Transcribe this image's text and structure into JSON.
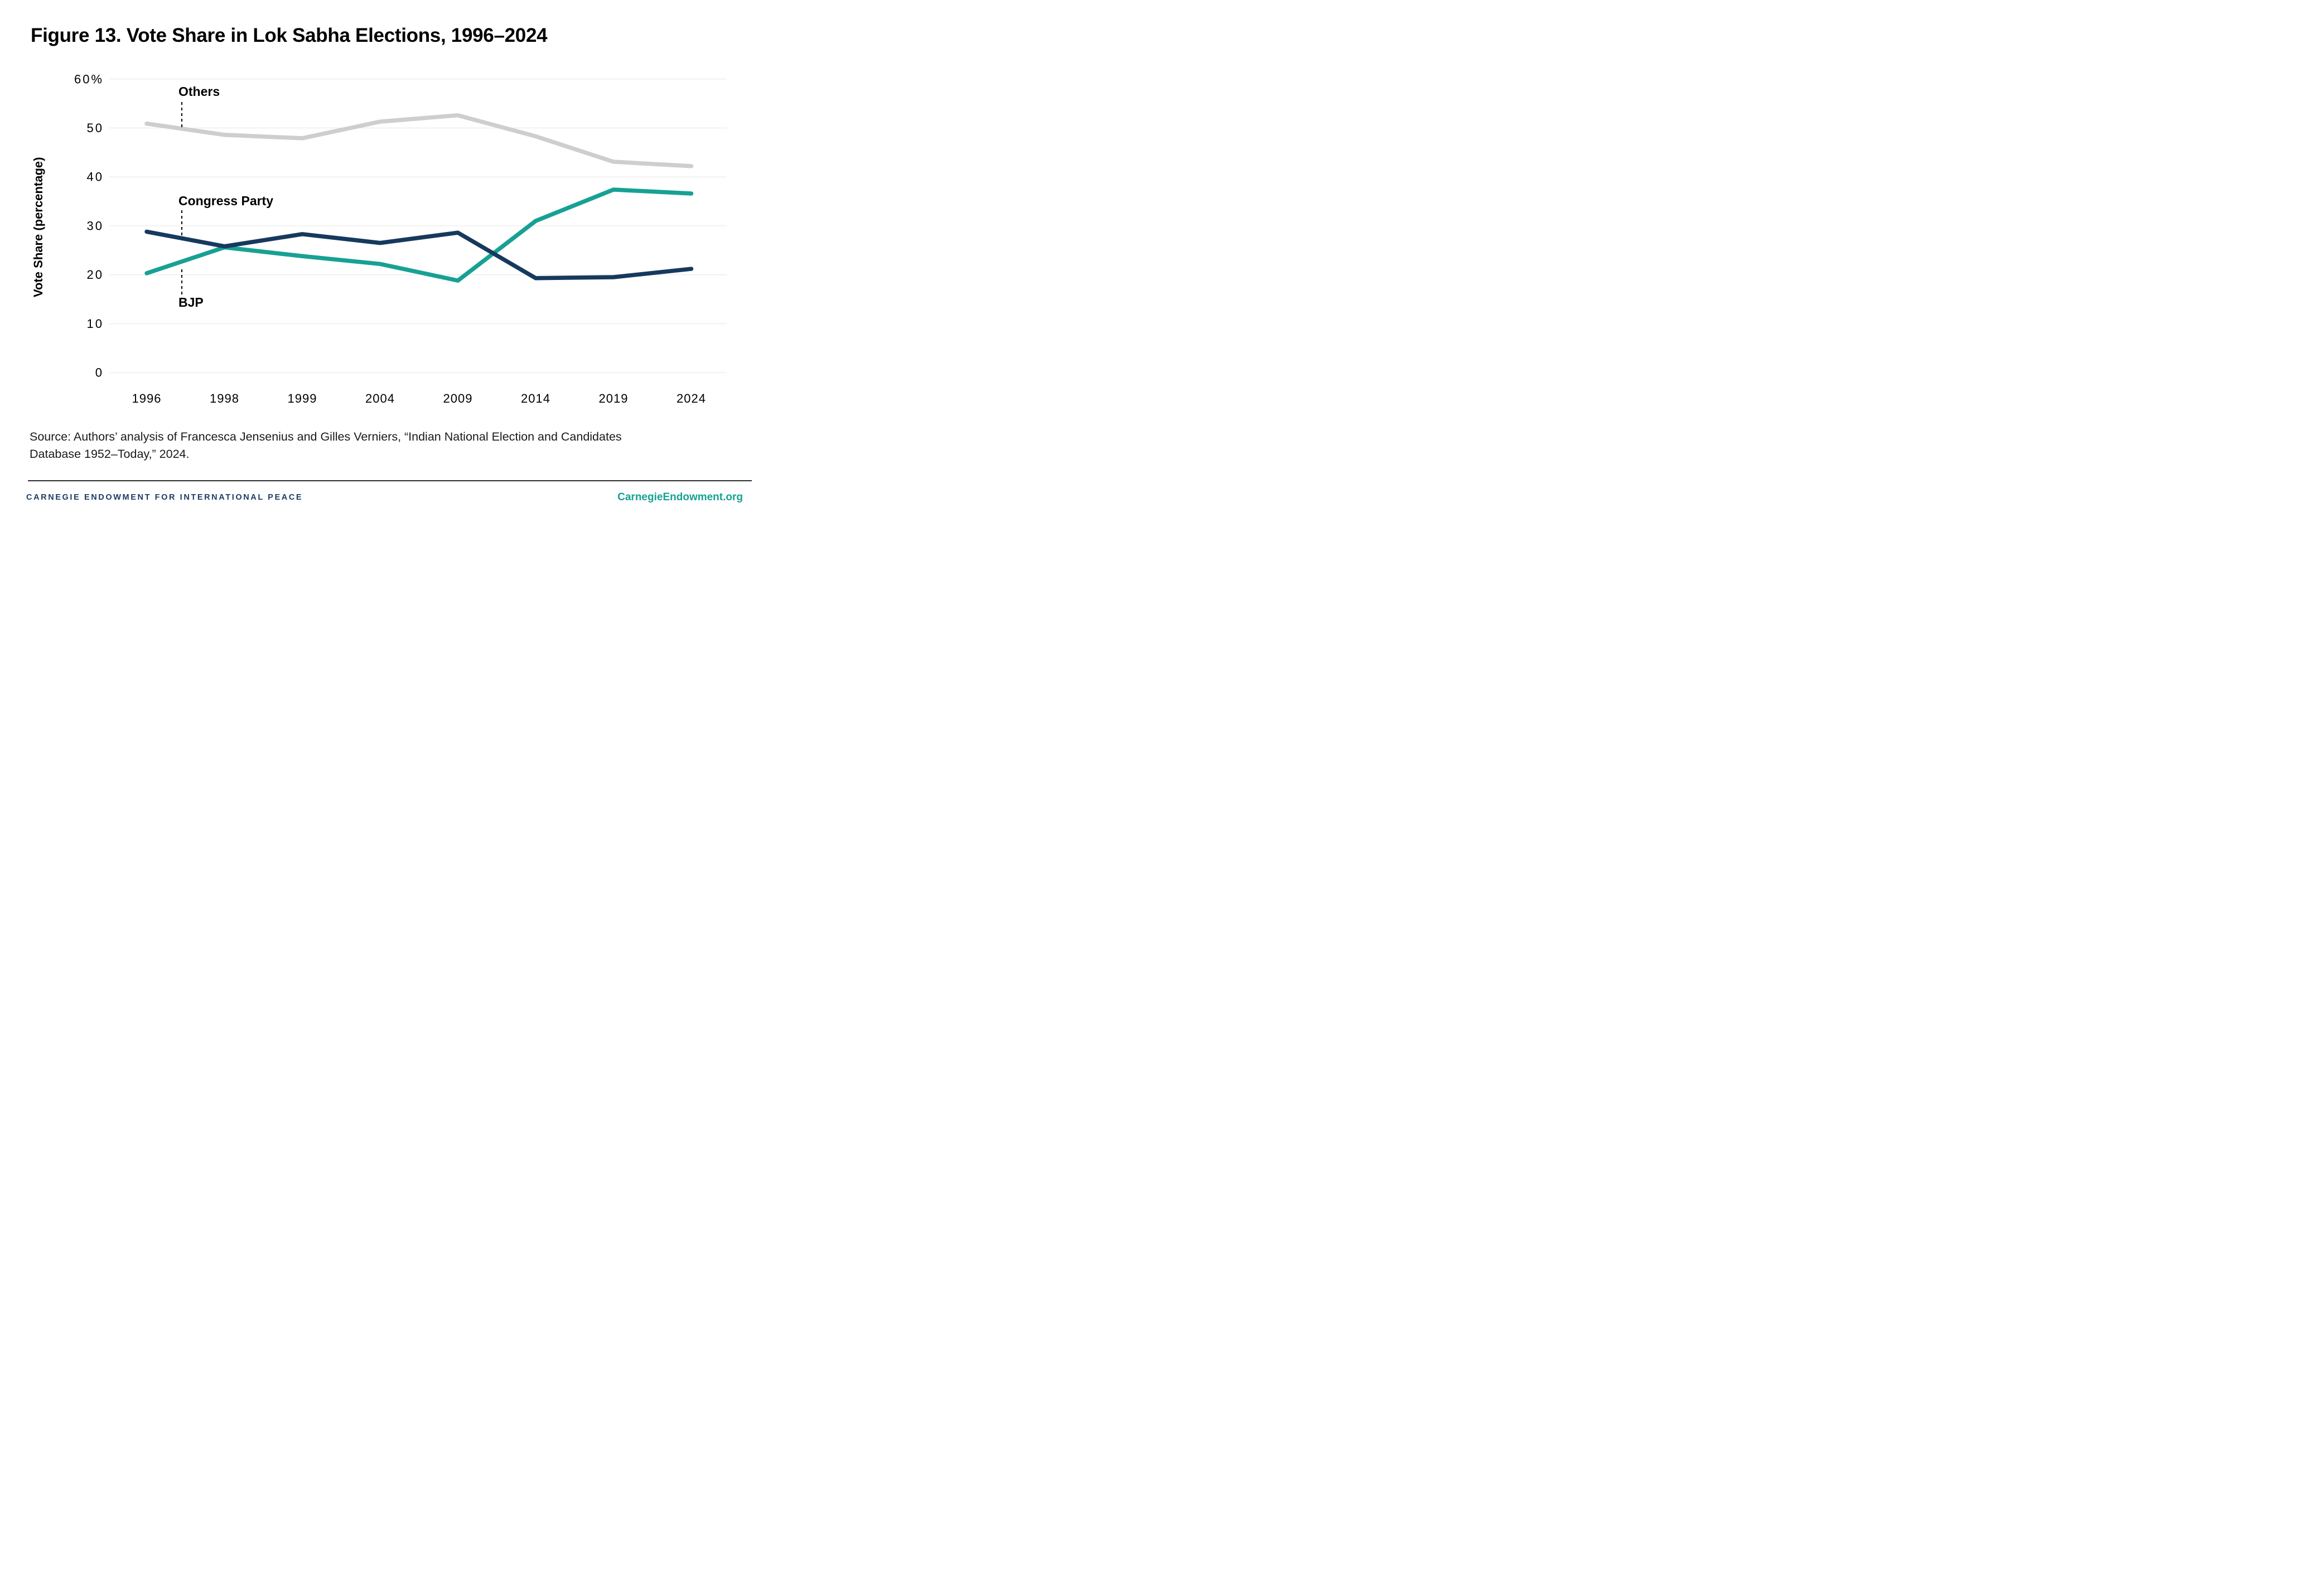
{
  "title": "Figure 13. Vote Share in Lok Sabha Elections, 1996–2024",
  "chart_data": {
    "type": "line",
    "title": "Figure 13. Vote Share in Lok Sabha Elections, 1996–2024",
    "xlabel": "",
    "ylabel": "Vote Share (percentage)",
    "categories": [
      "1996",
      "1998",
      "1999",
      "2004",
      "2009",
      "2014",
      "2019",
      "2024"
    ],
    "ylim": [
      0,
      60
    ],
    "ytick_values": [
      0,
      10,
      20,
      30,
      40,
      50,
      60
    ],
    "ytick_labels": [
      "0",
      "10",
      "20",
      "30",
      "40",
      "50",
      "60%"
    ],
    "grid": "horizontal",
    "grid_color": "#ececec",
    "legend_position": "inline-annotations",
    "series": [
      {
        "name": "Others",
        "color": "#cdced0",
        "values": [
          50.9,
          48.6,
          47.9,
          51.3,
          52.6,
          48.3,
          43.1,
          42.2
        ]
      },
      {
        "name": "BJP",
        "color": "#17a194",
        "values": [
          20.3,
          25.6,
          23.8,
          22.2,
          18.8,
          31.0,
          37.4,
          36.6
        ]
      },
      {
        "name": "Congress Party",
        "color": "#16395e",
        "values": [
          28.8,
          25.8,
          28.3,
          26.5,
          28.6,
          19.3,
          19.5,
          21.2
        ]
      }
    ],
    "annotations": [
      {
        "label": "Others"
      },
      {
        "label": "Congress Party"
      },
      {
        "label": "BJP"
      }
    ]
  },
  "source": {
    "line1": "Source: Authors’ analysis of Francesca Jensenius and Gilles Verniers, “Indian National Election and Candidates",
    "line2": "Database 1952–Today,” 2024."
  },
  "footer": {
    "org": "CARNEGIE ENDOWMENT FOR INTERNATIONAL PEACE",
    "url": "CarnegieEndowment.org",
    "accent_navy": "#1b3c63",
    "accent_teal": "#16a294"
  }
}
